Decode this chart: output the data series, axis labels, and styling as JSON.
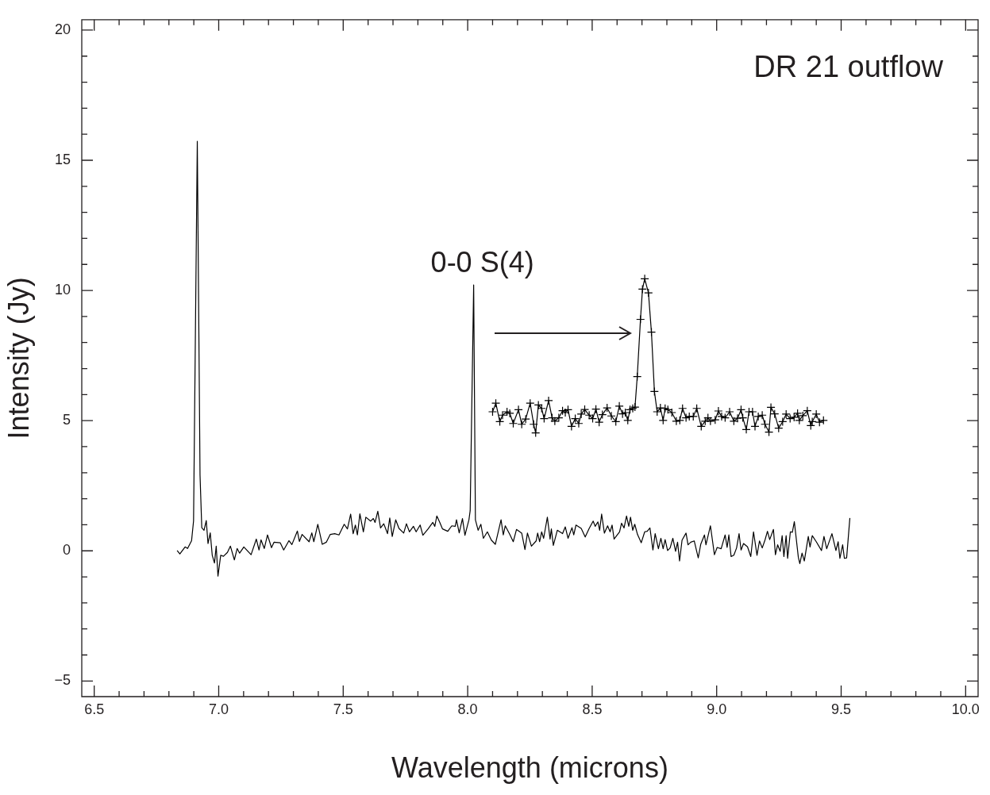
{
  "chart_data": {
    "type": "line",
    "xlabel": "Wavelength (microns)",
    "ylabel": "Intensity (Jy)",
    "xlim": [
      6.45,
      10.05
    ],
    "ylim": [
      -5.6,
      20.4
    ],
    "xticks": [
      {
        "value": 6.5,
        "label": "6.5"
      },
      {
        "value": 6.6,
        "label": null
      },
      {
        "value": 6.7,
        "label": null
      },
      {
        "value": 6.8,
        "label": null
      },
      {
        "value": 6.9,
        "label": null
      },
      {
        "value": 7,
        "label": "7.0"
      },
      {
        "value": 7.1,
        "label": null
      },
      {
        "value": 7.2,
        "label": null
      },
      {
        "value": 7.3,
        "label": null
      },
      {
        "value": 7.4,
        "label": null
      },
      {
        "value": 7.5,
        "label": "7.5"
      },
      {
        "value": 7.6,
        "label": null
      },
      {
        "value": 7.7,
        "label": null
      },
      {
        "value": 7.8,
        "label": null
      },
      {
        "value": 7.9,
        "label": null
      },
      {
        "value": 8,
        "label": "8.0"
      },
      {
        "value": 8.1,
        "label": null
      },
      {
        "value": 8.2,
        "label": null
      },
      {
        "value": 8.3,
        "label": null
      },
      {
        "value": 8.4,
        "label": null
      },
      {
        "value": 8.5,
        "label": "8.5"
      },
      {
        "value": 8.6,
        "label": null
      },
      {
        "value": 8.7,
        "label": null
      },
      {
        "value": 8.8,
        "label": null
      },
      {
        "value": 8.9,
        "label": null
      },
      {
        "value": 9,
        "label": "9.0"
      },
      {
        "value": 9.1,
        "label": null
      },
      {
        "value": 9.2,
        "label": null
      },
      {
        "value": 9.3,
        "label": null
      },
      {
        "value": 9.4,
        "label": null
      },
      {
        "value": 9.5,
        "label": "9.5"
      },
      {
        "value": 9.6,
        "label": null
      },
      {
        "value": 9.7,
        "label": null
      },
      {
        "value": 9.8,
        "label": null
      },
      {
        "value": 9.9,
        "label": null
      },
      {
        "value": 10,
        "label": "10.0"
      }
    ],
    "yticks": [
      {
        "value": -5,
        "label": "−5"
      },
      {
        "value": -4,
        "label": null
      },
      {
        "value": -3,
        "label": null
      },
      {
        "value": -2,
        "label": null
      },
      {
        "value": -1,
        "label": null
      },
      0,
      {
        "value": 1,
        "label": null
      },
      {
        "value": 2,
        "label": null
      },
      {
        "value": 3,
        "label": null
      },
      {
        "value": 4,
        "label": null
      },
      5,
      {
        "value": 6,
        "label": null
      },
      {
        "value": 7,
        "label": null
      },
      {
        "value": 8,
        "label": null
      },
      {
        "value": 9,
        "label": null
      },
      10,
      {
        "value": 11,
        "label": null
      },
      {
        "value": 12,
        "label": null
      },
      {
        "value": 13,
        "label": null
      },
      {
        "value": 14,
        "label": null
      },
      15,
      {
        "value": 16,
        "label": null
      },
      {
        "value": 17,
        "label": null
      },
      {
        "value": 18,
        "label": null
      },
      {
        "value": 19,
        "label": null
      },
      20
    ],
    "grid": false,
    "legend": false,
    "annotations": [
      "DR 21 outflow",
      {
        "text": "0-0 S(4)",
        "x": 8.024,
        "y": 10.21
      }
    ],
    "series": [
      {
        "color": "#000000",
        "marker": "none",
        "x": [
          6.833,
          6.844,
          6.865,
          6.875,
          6.891,
          6.899,
          6.914,
          6.925,
          6.932,
          6.941,
          6.95,
          6.957,
          6.966,
          6.974,
          6.983,
          6.99,
          6.997,
          7.008,
          7.019,
          7.035,
          7.047,
          7.063,
          7.074,
          7.084,
          7.101,
          7.13,
          7.151,
          7.162,
          7.17,
          7.183,
          7.196,
          7.212,
          7.222,
          7.247,
          7.261,
          7.282,
          7.294,
          7.316,
          7.324,
          7.335,
          7.363,
          7.374,
          7.382,
          7.398,
          7.416,
          7.432,
          7.448,
          7.466,
          7.483,
          7.504,
          7.517,
          7.53,
          7.54,
          7.549,
          7.557,
          7.567,
          7.581,
          7.591,
          7.61,
          7.621,
          7.628,
          7.639,
          7.65,
          7.663,
          7.678,
          7.687,
          7.697,
          7.711,
          7.724,
          7.743,
          7.754,
          7.766,
          7.782,
          7.793,
          7.809,
          7.82,
          7.841,
          7.86,
          7.868,
          7.876,
          7.888,
          7.899,
          7.92,
          7.936,
          7.95,
          7.955,
          7.966,
          7.979,
          7.989,
          8.005,
          8.01,
          8.024,
          8.031,
          8.042,
          8.053,
          8.063,
          8.079,
          8.095,
          8.111,
          8.134,
          8.143,
          8.151,
          8.169,
          8.183,
          8.196,
          8.217,
          8.23,
          8.24,
          8.256,
          8.275,
          8.281,
          8.289,
          8.297,
          8.305,
          8.32,
          8.331,
          8.336,
          8.344,
          8.36,
          8.381,
          8.392,
          8.403,
          8.419,
          8.426,
          8.435,
          8.456,
          8.472,
          8.488,
          8.504,
          8.512,
          8.523,
          8.53,
          8.538,
          8.549,
          8.562,
          8.572,
          8.58,
          8.588,
          8.61,
          8.618,
          8.628,
          8.638,
          8.647,
          8.654,
          8.663,
          8.671,
          8.682,
          8.697,
          8.711,
          8.721,
          8.732,
          8.744,
          8.753,
          8.766,
          8.776,
          8.785,
          8.793,
          8.803,
          8.813,
          8.824,
          8.835,
          8.843,
          8.851,
          8.861,
          8.877,
          8.885,
          8.896,
          8.91,
          8.926,
          8.936,
          8.951,
          8.957,
          8.975,
          8.991,
          9.002,
          9.018,
          9.034,
          9.042,
          9.049,
          9.058,
          9.069,
          9.08,
          9.09,
          9.098,
          9.108,
          9.124,
          9.137,
          9.148,
          9.162,
          9.172,
          9.183,
          9.194,
          9.204,
          9.213,
          9.228,
          9.236,
          9.245,
          9.255,
          9.263,
          9.27,
          9.279,
          9.285,
          9.296,
          9.304,
          9.312,
          9.328,
          9.334,
          9.343,
          9.352,
          9.368,
          9.375,
          9.384,
          9.4,
          9.421,
          9.431,
          9.442,
          9.463,
          9.479,
          9.488,
          9.495,
          9.506,
          9.513,
          9.522,
          9.535
        ],
        "values": [
          0.01,
          -0.12,
          0.15,
          0.09,
          0.39,
          1.15,
          15.73,
          2.9,
          0.89,
          0.79,
          1.16,
          0.28,
          0.69,
          -0.17,
          -0.47,
          0.18,
          -0.97,
          -0.17,
          -0.21,
          -0.06,
          0.18,
          -0.35,
          0.09,
          -0.09,
          0.15,
          -0.15,
          0.45,
          0.03,
          0.42,
          0.09,
          0.61,
          0.12,
          0.33,
          0.31,
          0.03,
          0.39,
          0.24,
          0.76,
          0.36,
          0.63,
          0.35,
          0.69,
          0.35,
          1.02,
          0.25,
          0.33,
          0.63,
          0.66,
          0.61,
          1.02,
          0.84,
          1.41,
          0.66,
          0.99,
          0.61,
          1.42,
          0.73,
          1.29,
          1.14,
          1.24,
          1.09,
          1.52,
          0.88,
          1.04,
          0.66,
          1.26,
          0.55,
          1.19,
          0.86,
          0.68,
          1.04,
          0.73,
          0.94,
          0.73,
          0.99,
          0.6,
          0.84,
          1.09,
          0.94,
          1.34,
          1.09,
          0.84,
          0.75,
          0.96,
          0.94,
          1.19,
          0.69,
          1.24,
          0.6,
          1.19,
          1.54,
          10.21,
          1.19,
          0.79,
          1.02,
          0.48,
          0.73,
          0.41,
          0.25,
          1.19,
          0.61,
          0.96,
          0.63,
          0.35,
          0.82,
          0.68,
          0.05,
          0.68,
          0.18,
          0.38,
          0.68,
          0.35,
          0.73,
          0.48,
          1.29,
          0.45,
          0.84,
          0.21,
          0.79,
          0.66,
          0.92,
          0.48,
          0.89,
          0.61,
          0.99,
          0.86,
          0.53,
          0.86,
          1.14,
          0.94,
          1.11,
          0.79,
          1.41,
          0.68,
          0.96,
          0.73,
          0.99,
          0.45,
          0.73,
          1.06,
          0.88,
          1.34,
          0.94,
          1.29,
          0.79,
          1.02,
          0.63,
          0.31,
          0.73,
          0.75,
          0.88,
          0.03,
          0.66,
          0.08,
          0.48,
          0.08,
          0.43,
          0.01,
          0.11,
          0.48,
          -0.02,
          0.33,
          -0.39,
          0.41,
          0.68,
          0.23,
          0.33,
          0.38,
          -0.27,
          0.25,
          0.61,
          0.23,
          0.96,
          -0.15,
          0.13,
          0.08,
          0.61,
          0.13,
          0.61,
          -0.22,
          -0.17,
          0.11,
          0.66,
          0.03,
          0.28,
          0.15,
          -0.22,
          0.73,
          -0.17,
          0.38,
          0.11,
          0.41,
          0.75,
          0.43,
          0.82,
          -0.15,
          0.23,
          -0.02,
          0.58,
          -0.22,
          0.58,
          -0.29,
          0.73,
          0.71,
          1.12,
          -0.25,
          -0.49,
          -0.09,
          -0.39,
          0.55,
          0.15,
          0.58,
          0.35,
          0.01,
          0.55,
          0.08,
          0.66,
          0.01,
          0.35,
          -0.29,
          0.23,
          -0.29,
          -0.27,
          1.26
        ]
      },
      {
        "color": "#000000",
        "marker": "cross",
        "x": [
          8.1,
          8.113,
          8.129,
          8.14,
          8.158,
          8.169,
          8.183,
          8.204,
          8.217,
          8.233,
          8.251,
          8.265,
          8.273,
          8.284,
          8.297,
          8.307,
          8.325,
          8.339,
          8.35,
          8.366,
          8.381,
          8.392,
          8.403,
          8.417,
          8.432,
          8.446,
          8.456,
          8.47,
          8.488,
          8.502,
          8.515,
          8.528,
          8.541,
          8.56,
          8.577,
          8.595,
          8.609,
          8.622,
          8.633,
          8.643,
          8.652,
          8.663,
          8.672,
          8.681,
          8.694,
          8.702,
          8.711,
          8.726,
          8.738,
          8.75,
          8.761,
          8.774,
          8.785,
          8.793,
          8.804,
          8.82,
          8.838,
          8.852,
          8.863,
          8.877,
          8.89,
          8.906,
          8.92,
          8.938,
          8.954,
          8.965,
          8.975,
          8.994,
          9.007,
          9.02,
          9.034,
          9.052,
          9.069,
          9.084,
          9.098,
          9.105,
          9.119,
          9.13,
          9.144,
          9.154,
          9.167,
          9.183,
          9.194,
          9.21,
          9.218,
          9.233,
          9.249,
          9.265,
          9.279,
          9.295,
          9.311,
          9.325,
          9.332,
          9.346,
          9.364,
          9.378,
          9.384,
          9.4,
          9.413,
          9.429
        ],
        "values": [
          5.34,
          5.67,
          4.96,
          5.21,
          5.34,
          5.28,
          4.89,
          5.42,
          4.86,
          5.06,
          5.67,
          4.86,
          4.53,
          5.6,
          5.47,
          5.08,
          5.77,
          5.11,
          4.98,
          5.11,
          5.38,
          5.31,
          5.42,
          4.78,
          5.08,
          4.89,
          5.25,
          5.43,
          5.21,
          5.08,
          5.44,
          4.94,
          5.23,
          5.49,
          5.18,
          4.96,
          5.56,
          5.26,
          5.31,
          5.01,
          5.42,
          5.47,
          5.52,
          6.69,
          8.89,
          10.05,
          10.45,
          9.91,
          8.4,
          6.12,
          5.34,
          5.49,
          5.01,
          5.47,
          5.42,
          5.31,
          4.98,
          5.01,
          5.47,
          5.11,
          5.16,
          5.16,
          5.47,
          4.78,
          4.98,
          5.11,
          4.98,
          5.03,
          5.37,
          5.16,
          5.11,
          5.34,
          4.98,
          5.09,
          5.42,
          5.11,
          4.66,
          5.34,
          5.34,
          4.78,
          5.16,
          5.21,
          4.86,
          4.56,
          5.51,
          5.26,
          4.71,
          4.96,
          5.25,
          5.08,
          5.13,
          5.28,
          5.01,
          5.19,
          5.38,
          4.81,
          4.96,
          5.25,
          4.94,
          5.01
        ]
      }
    ]
  }
}
